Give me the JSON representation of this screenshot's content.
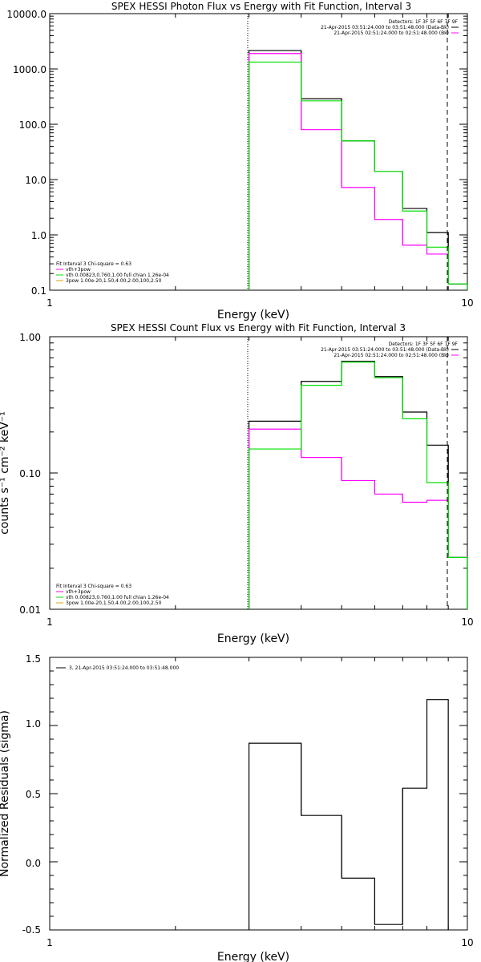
{
  "colors": {
    "data": "#000000",
    "fit": "#ff00ff",
    "comp1": "#00e000",
    "comp2": "#e0a000",
    "background": "#ffffff"
  },
  "chart_data": [
    {
      "type": "line",
      "drawstyle": "steps",
      "title": "SPEX HESSI Photon Flux vs Energy with Fit Function, Interval 3",
      "xlabel": "Energy (keV)",
      "ylabel": "",
      "xscale": "log",
      "yscale": "log",
      "xlim": [
        1,
        10
      ],
      "ylim": [
        0.1,
        10000
      ],
      "x_ticks": [
        "1",
        "10"
      ],
      "y_ticks": [
        "10000.0",
        "1000.0",
        "100.0",
        "10.0",
        "1.0",
        "0.1"
      ],
      "bin_edges": [
        3,
        4,
        5,
        6,
        7,
        8,
        9,
        10
      ],
      "series": [
        {
          "name": "",
          "color": "#000000",
          "values": [
            2150,
            290,
            50,
            14,
            3.0,
            1.1,
            0.13
          ]
        },
        {
          "name": "vth+3pow",
          "color": "#ff00ff",
          "values": [
            1900,
            80,
            7.2,
            1.9,
            0.65,
            0.45,
            0.13
          ]
        },
        {
          "name": "vth 0.00823,0.760,1.00  full chian 1.26e-04",
          "color": "#00e000",
          "values": [
            1330,
            265,
            50,
            14,
            2.7,
            0.6,
            0.13
          ]
        }
      ],
      "vlines": [
        {
          "x": 3,
          "style": "dotted"
        },
        {
          "x": 9,
          "style": "dashed"
        }
      ],
      "legend_top_right": [
        "Detectors: 1F 3F 5F 6F 7F 9F",
        "21-Apr-2015 03:51:24.000 to 03:51:48.000 (Data-Bk)",
        "21-Apr-2015 02:51:24.000 to 02:51:48.000 (Bk)"
      ],
      "legend_bottom_left": [
        "Fit Interval 3   Chi-square = 0.63",
        "vth+3pow",
        "vth 0.00823,0.760,1.00  full chian 1.26e-04",
        "3pow 1.00e-20,1.50,4.00,2.00,100,2.50"
      ]
    },
    {
      "type": "line",
      "drawstyle": "steps",
      "title": "SPEX HESSI Count Flux vs Energy with Fit Function, Interval 3",
      "xlabel": "Energy (keV)",
      "ylabel": "counts s⁻¹ cm⁻² keV⁻¹",
      "xscale": "log",
      "yscale": "log",
      "xlim": [
        1,
        10
      ],
      "ylim": [
        0.01,
        1.0
      ],
      "x_ticks": [
        "1",
        "10"
      ],
      "y_ticks": [
        "1.00",
        "0.10",
        "0.01"
      ],
      "bin_edges": [
        3,
        4,
        5,
        6,
        7,
        8,
        9,
        10
      ],
      "series": [
        {
          "name": "",
          "color": "#000000",
          "values": [
            0.24,
            0.47,
            0.66,
            0.51,
            0.28,
            0.16,
            0.024
          ]
        },
        {
          "name": "vth+3pow",
          "color": "#ff00ff",
          "values": [
            0.21,
            0.13,
            0.088,
            0.07,
            0.061,
            0.063,
            0.024
          ]
        },
        {
          "name": "vth 0.00823,0.760,1.00  full chian 1.26e-04",
          "color": "#00e000",
          "values": [
            0.15,
            0.44,
            0.65,
            0.5,
            0.25,
            0.085,
            0.024
          ]
        }
      ],
      "vlines": [
        {
          "x": 3,
          "style": "dotted"
        },
        {
          "x": 9,
          "style": "dashed"
        }
      ],
      "legend_top_right": [
        "Detectors: 1F 3F 5F 6F 7F 9F",
        "21-Apr-2015 03:51:24.000 to 03:51:48.000 (Data-Bk)",
        "21-Apr-2015 02:51:24.000 to 02:51:48.000 (Bk)"
      ],
      "legend_bottom_left": [
        "Fit Interval 3   Chi-square = 0.63",
        "vth+3pow",
        "vth 0.00823,0.760,1.00  full chian 1.26e-04",
        "3pow 1.00e-20,1.50,4.00,2.00,100,2.50"
      ]
    },
    {
      "type": "line",
      "drawstyle": "steps",
      "title": "",
      "xlabel": "Energy (keV)",
      "ylabel": "Normalized Residuals (sigma)",
      "xscale": "log",
      "yscale": "linear",
      "xlim": [
        1,
        10
      ],
      "ylim": [
        -0.5,
        1.5
      ],
      "x_ticks": [
        "1",
        "10"
      ],
      "y_ticks": [
        "1.5",
        "1.0",
        "0.5",
        "0.0",
        "-0.5"
      ],
      "bin_edges": [
        3,
        4,
        5,
        6,
        7,
        8,
        9
      ],
      "series": [
        {
          "name": "3, 21-Apr-2015 03:51:24.000 to 03:51:48.000",
          "color": "#000000",
          "values": [
            0.87,
            0.34,
            -0.12,
            -0.46,
            0.54,
            1.19
          ]
        }
      ]
    }
  ]
}
